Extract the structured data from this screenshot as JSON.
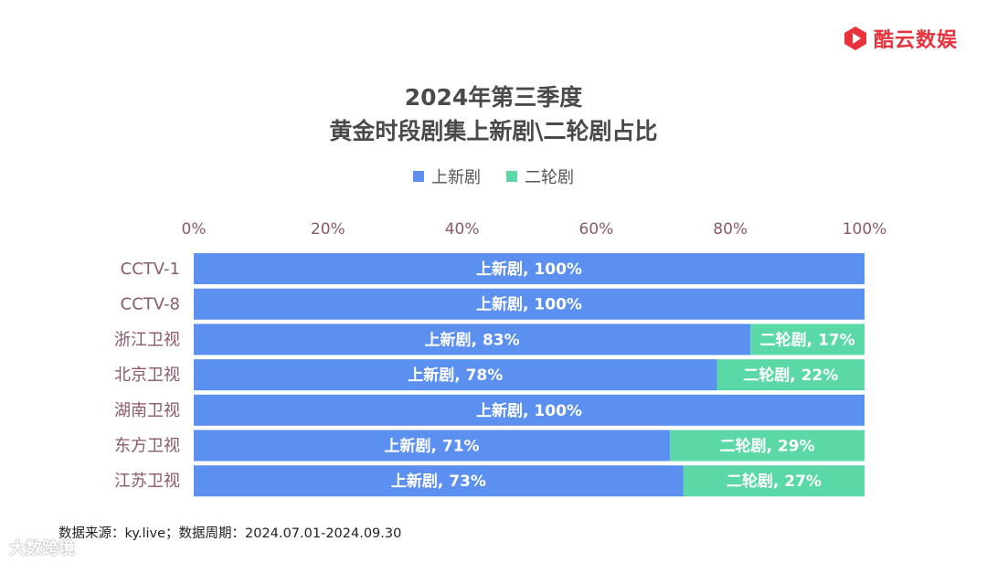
{
  "brand": {
    "name": "酷云数娱",
    "color": "#e8323c"
  },
  "title": {
    "line1": "2024年第三季度",
    "line2": "黄金时段剧集上新剧\\二轮剧占比"
  },
  "legend": [
    {
      "label": "上新剧",
      "color": "#5b8ff0"
    },
    {
      "label": "二轮剧",
      "color": "#5ad8a6"
    }
  ],
  "source": "数据来源：ky.live；数据周期：2024.07.01-2024.09.30",
  "watermark": "大数跨境",
  "chart_data": {
    "type": "bar",
    "orientation": "horizontal",
    "stacked": true,
    "categories": [
      "CCTV-1",
      "CCTV-8",
      "浙江卫视",
      "北京卫视",
      "湖南卫视",
      "东方卫视",
      "江苏卫视"
    ],
    "series": [
      {
        "name": "上新剧",
        "color": "#5b8ff0",
        "values": [
          100,
          100,
          83,
          78,
          100,
          71,
          73
        ]
      },
      {
        "name": "二轮剧",
        "color": "#5ad8a6",
        "values": [
          0,
          0,
          17,
          22,
          0,
          29,
          27
        ]
      }
    ],
    "xlim": [
      0,
      100
    ],
    "xticks": [
      "0%",
      "20%",
      "40%",
      "60%",
      "80%",
      "100%"
    ],
    "axis_position": "top",
    "tick_color": "#8b5a6a"
  }
}
